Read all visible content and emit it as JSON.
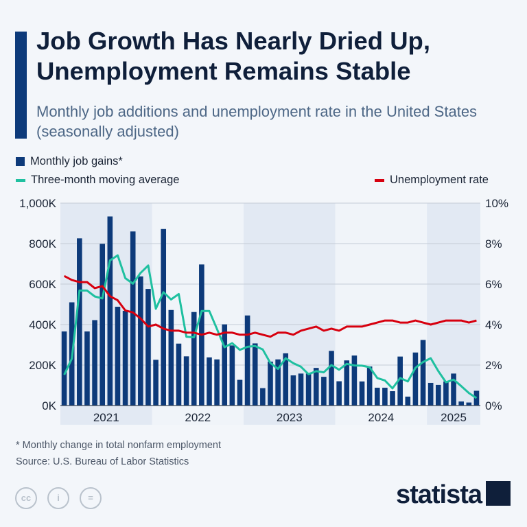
{
  "title": "Job Growth Has Nearly Dried Up, Unemployment Remains Stable",
  "subtitle": "Monthly job additions and unemployment rate in the United States (seasonally adjusted)",
  "footnote": "* Monthly change in total nonfarm employment",
  "source": "Source: U.S. Bureau of Labor Statistics",
  "brand": "statista",
  "license_icons": [
    "cc-icon",
    "attribution-icon",
    "no-derivatives-icon"
  ],
  "chart_data": {
    "type": "bar",
    "title": "",
    "legend": {
      "placement": "top",
      "items": [
        "Monthly job gains*",
        "Three-month moving average",
        "Unemployment rate"
      ]
    },
    "x_tick_labels": [
      "2021",
      "2022",
      "2023",
      "2024",
      "2025"
    ],
    "x_range": [
      "2021-01",
      "2025-07"
    ],
    "y_left": {
      "range": [
        0,
        1000
      ],
      "unit": "K",
      "ticks": [
        "0K",
        "200K",
        "400K",
        "600K",
        "800K",
        "1,000K"
      ]
    },
    "y_right": {
      "range": [
        0,
        10
      ],
      "unit": "%",
      "ticks": [
        "0%",
        "2%",
        "4%",
        "6%",
        "8%",
        "10%"
      ]
    },
    "grid": true,
    "series": [
      {
        "name": "Monthly job gains*",
        "type": "bar",
        "axis": "left",
        "color": "#0d3a7a",
        "values": [
          366,
          510,
          826,
          366,
          422,
          799,
          934,
          488,
          468,
          860,
          638,
          576,
          226,
          872,
          472,
          306,
          243,
          462,
          697,
          238,
          228,
          401,
          297,
          127,
          445,
          307,
          86,
          217,
          228,
          258,
          149,
          158,
          158,
          186,
          142,
          270,
          120,
          223,
          247,
          119,
          193,
          88,
          88,
          71,
          242,
          44,
          262,
          324,
          112,
          102,
          119,
          158,
          20,
          15,
          73
        ]
      },
      {
        "name": "Three-month moving average",
        "type": "line",
        "axis": "left",
        "color": "#1fc0a0",
        "values": [
          152,
          232,
          568,
          568,
          539,
          529,
          717,
          742,
          629,
          602,
          655,
          692,
          478,
          560,
          524,
          551,
          340,
          337,
          467,
          467,
          379,
          288,
          308,
          275,
          290,
          294,
          277,
          210,
          181,
          234,
          209,
          192,
          155,
          170,
          164,
          200,
          177,
          206,
          198,
          197,
          189,
          136,
          124,
          85,
          136,
          119,
          186,
          215,
          234,
          170,
          115,
          128,
          96,
          62,
          37
        ]
      },
      {
        "name": "Unemployment rate",
        "type": "line",
        "axis": "right",
        "color": "#d7000f",
        "values": [
          6.4,
          6.2,
          6.1,
          6.1,
          5.8,
          5.9,
          5.4,
          5.2,
          4.7,
          4.6,
          4.3,
          3.9,
          4.0,
          3.8,
          3.7,
          3.7,
          3.6,
          3.6,
          3.5,
          3.6,
          3.5,
          3.6,
          3.6,
          3.5,
          3.5,
          3.6,
          3.5,
          3.4,
          3.6,
          3.6,
          3.5,
          3.7,
          3.8,
          3.9,
          3.7,
          3.8,
          3.7,
          3.9,
          3.9,
          3.9,
          4.0,
          4.1,
          4.2,
          4.2,
          4.1,
          4.1,
          4.2,
          4.1,
          4.0,
          4.1,
          4.2,
          4.2,
          4.2,
          4.1,
          4.2
        ]
      }
    ]
  }
}
